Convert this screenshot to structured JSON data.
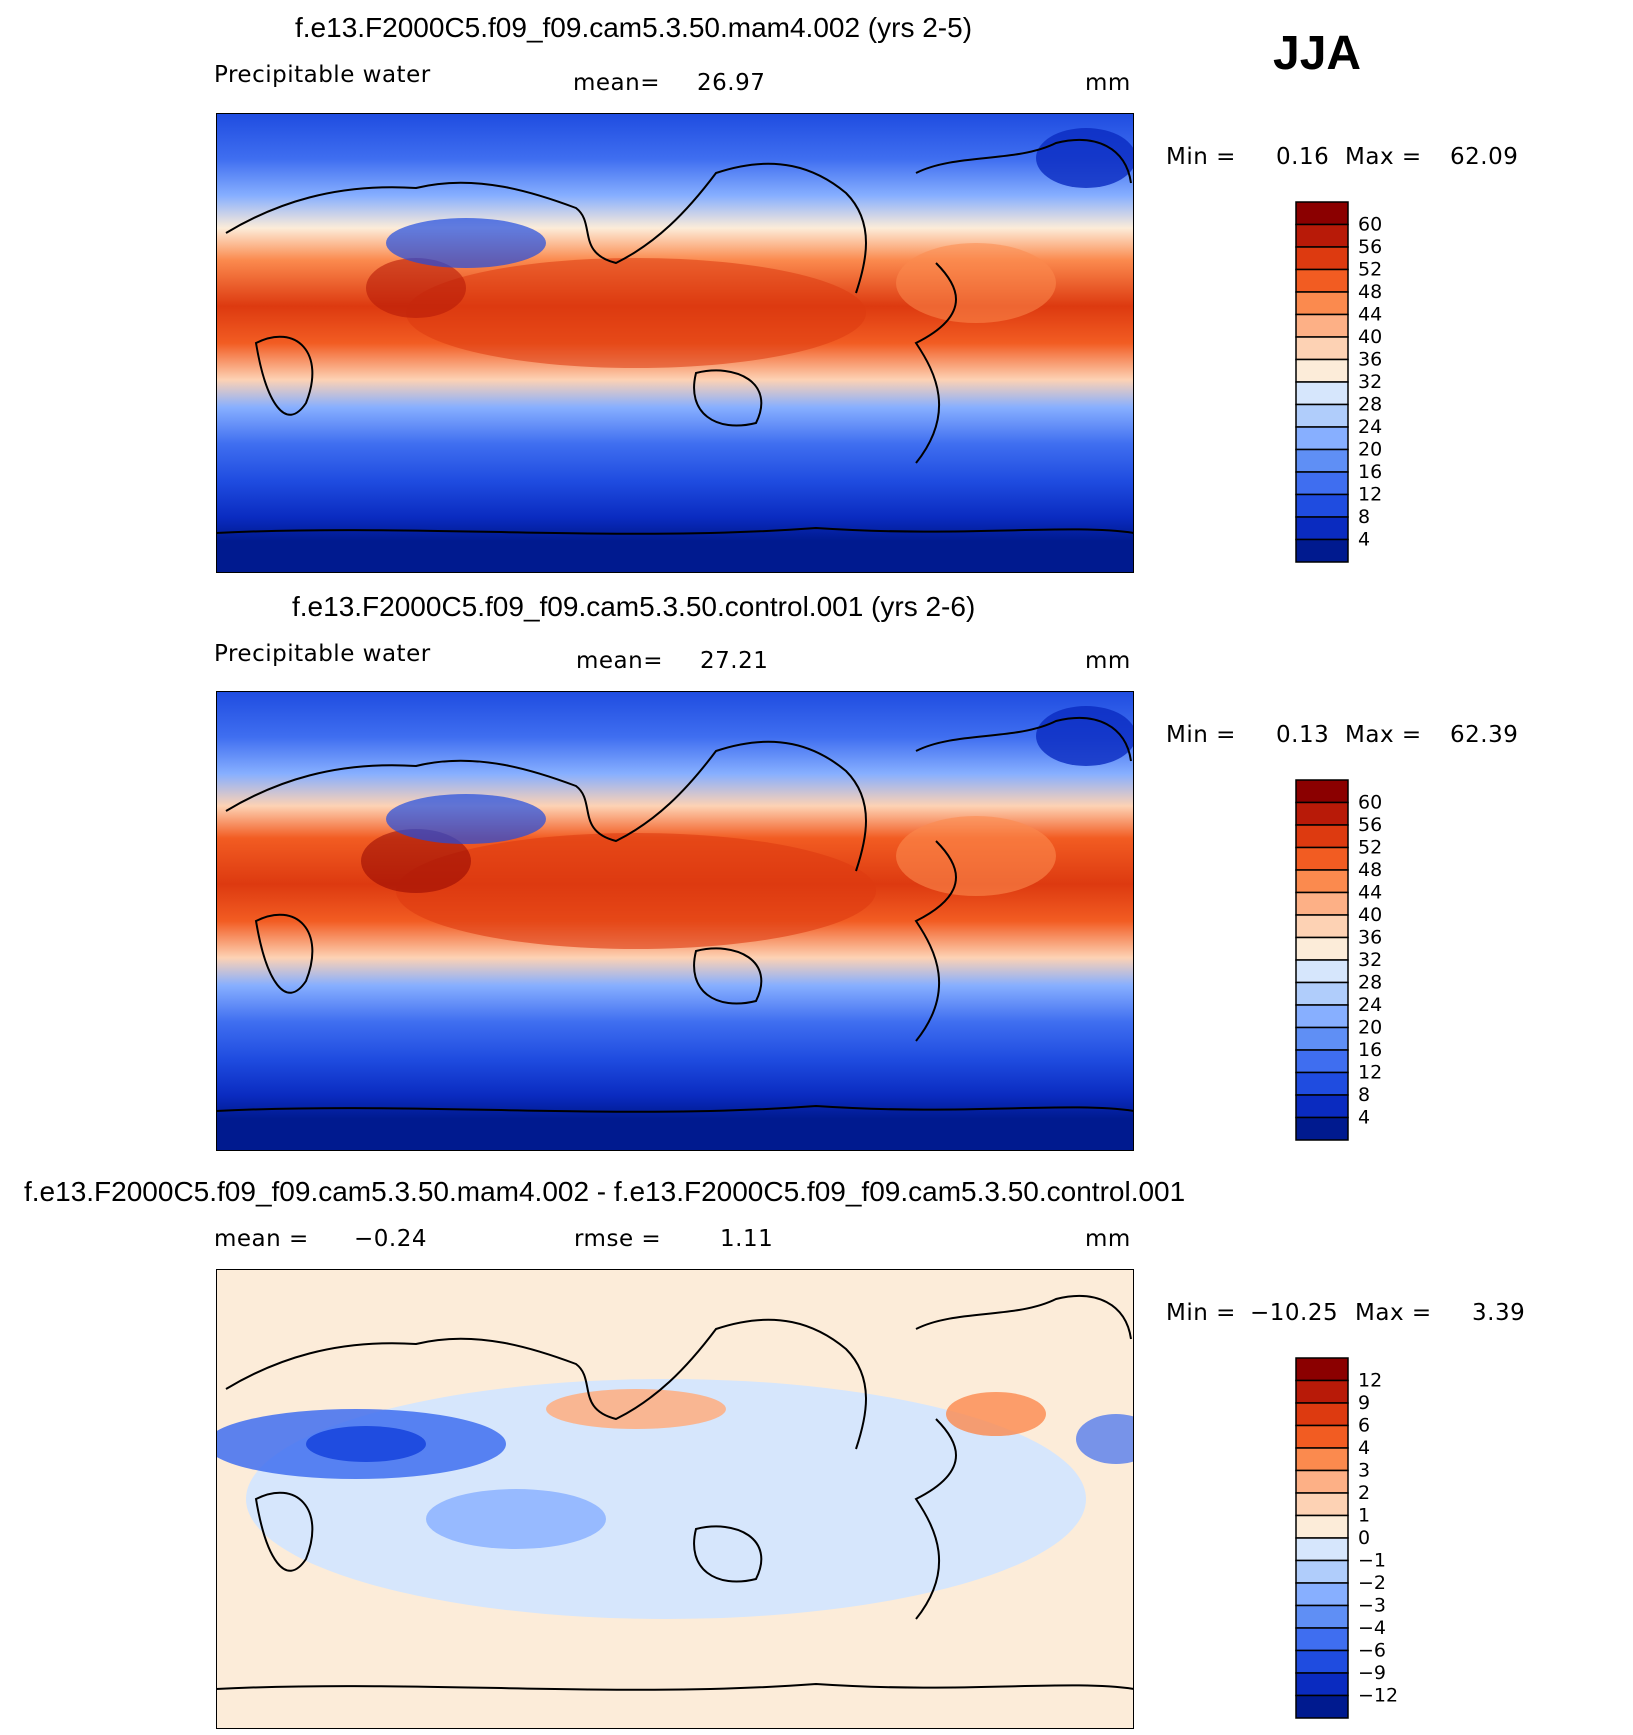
{
  "season": "JJA",
  "units": "mm",
  "panels": [
    {
      "title": "f.e13.F2000C5.f09_f09.cam5.3.50.mam4.002 (yrs 2-5)",
      "variable": "Precipitable water",
      "stat1_label": "mean=",
      "stat1_value": "26.97",
      "stat2_label": "",
      "stat2_value": "",
      "units": "mm",
      "min_label": "Min =",
      "min_value": "0.16",
      "max_label": "Max =",
      "max_value": "62.09",
      "colorbar": {
        "labels": [
          "60",
          "56",
          "52",
          "48",
          "44",
          "40",
          "36",
          "32",
          "28",
          "24",
          "20",
          "16",
          "12",
          "8",
          "4"
        ],
        "colors": [
          "#8b0000",
          "#b81a08",
          "#dd3a10",
          "#f25c22",
          "#fb8a4e",
          "#fdb086",
          "#fdd2b4",
          "#fcecd9",
          "#d6e6fc",
          "#b0cdfb",
          "#87afff",
          "#5f8ff5",
          "#3f6ef0",
          "#1f4ce0",
          "#0a2bc0",
          "#001a8f"
        ]
      }
    },
    {
      "title": "f.e13.F2000C5.f09_f09.cam5.3.50.control.001 (yrs 2-6)",
      "variable": "Precipitable water",
      "stat1_label": "mean=",
      "stat1_value": "27.21",
      "stat2_label": "",
      "stat2_value": "",
      "units": "mm",
      "min_label": "Min =",
      "min_value": "0.13",
      "max_label": "Max =",
      "max_value": "62.39",
      "colorbar": {
        "labels": [
          "60",
          "56",
          "52",
          "48",
          "44",
          "40",
          "36",
          "32",
          "28",
          "24",
          "20",
          "16",
          "12",
          "8",
          "4"
        ],
        "colors": [
          "#8b0000",
          "#b81a08",
          "#dd3a10",
          "#f25c22",
          "#fb8a4e",
          "#fdb086",
          "#fdd2b4",
          "#fcecd9",
          "#d6e6fc",
          "#b0cdfb",
          "#87afff",
          "#5f8ff5",
          "#3f6ef0",
          "#1f4ce0",
          "#0a2bc0",
          "#001a8f"
        ]
      }
    },
    {
      "title": "f.e13.F2000C5.f09_f09.cam5.3.50.mam4.002 - f.e13.F2000C5.f09_f09.cam5.3.50.control.001",
      "variable": "",
      "stat1_label": "mean =",
      "stat1_value": "−0.24",
      "stat2_label": "rmse =",
      "stat2_value": "1.11",
      "units": "mm",
      "min_label": "Min =",
      "min_value": "−10.25",
      "max_label": "Max =",
      "max_value": "3.39",
      "colorbar": {
        "labels": [
          "12",
          "9",
          "6",
          "4",
          "3",
          "2",
          "1",
          "0",
          "−1",
          "−2",
          "−3",
          "−4",
          "−6",
          "−9",
          "−12"
        ],
        "colors": [
          "#8b0000",
          "#b81a08",
          "#dd3a10",
          "#f25c22",
          "#fb8a4e",
          "#fdb086",
          "#fdd2b4",
          "#fcecd9",
          "#d6e6fc",
          "#b0cdfb",
          "#87afff",
          "#5f8ff5",
          "#3f6ef0",
          "#1f4ce0",
          "#0a2bc0",
          "#001a8f"
        ]
      }
    }
  ]
}
